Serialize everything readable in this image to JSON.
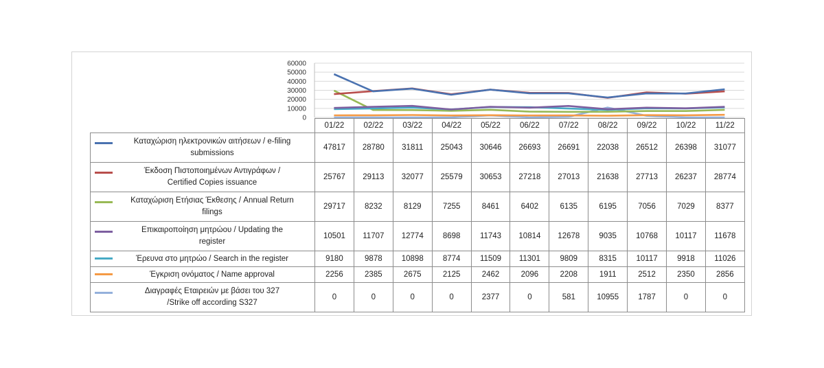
{
  "chart_data": {
    "type": "line",
    "title": "",
    "xlabel": "",
    "ylabel": "",
    "categories": [
      "01/22",
      "02/22",
      "03/22",
      "04/22",
      "05/22",
      "06/22",
      "07/22",
      "08/22",
      "09/22",
      "10/22",
      "11/22"
    ],
    "ylim": [
      0,
      60000
    ],
    "yticks": [
      "0",
      "10000",
      "20000",
      "30000",
      "40000",
      "50000",
      "60000"
    ],
    "grid": true,
    "legend": "data-table",
    "series": [
      {
        "name": "Καταχώριση ηλεκτρονικών αιτήσεων / e-filing submissions",
        "color": "#4a72b0",
        "values": [
          47817,
          28780,
          31811,
          25043,
          30646,
          26693,
          26691,
          22038,
          26512,
          26398,
          31077
        ]
      },
      {
        "name": "Έκδοση Πιστοποιημένων Αντιγράφων / Certified Copies issuance",
        "color": "#b84e4c",
        "values": [
          25767,
          29113,
          32077,
          25579,
          30653,
          27218,
          27013,
          21638,
          27713,
          26237,
          28774
        ]
      },
      {
        "name": "Καταχώριση Ετήσιας Έκθεσης / Annual Return filings",
        "color": "#98b955",
        "values": [
          29717,
          8232,
          8129,
          7255,
          8461,
          6402,
          6135,
          6195,
          7056,
          7029,
          8377
        ]
      },
      {
        "name": "Επικαιροποίηση μητρώου / Updating the register",
        "color": "#7d5fa0",
        "values": [
          10501,
          11707,
          12774,
          8698,
          11743,
          10814,
          12678,
          9035,
          10768,
          10117,
          11678
        ]
      },
      {
        "name": "Έρευνα στο μητρώο / Search in the register",
        "color": "#46aac5",
        "values": [
          9180,
          9878,
          10898,
          8774,
          11509,
          11301,
          9809,
          8315,
          10117,
          9918,
          11026
        ]
      },
      {
        "name": "Έγκριση ονόματος / Name approval",
        "color": "#f59a45",
        "values": [
          2256,
          2385,
          2675,
          2125,
          2462,
          2096,
          2208,
          1911,
          2512,
          2350,
          2856
        ]
      },
      {
        "name": "Διαγραφές Εταιρειών με βάσει του 327 /Strike off according S327",
        "color": "#94b0db",
        "values": [
          0,
          0,
          0,
          0,
          2377,
          0,
          581,
          10955,
          1787,
          0,
          0
        ]
      }
    ]
  },
  "labels": [
    [
      "Καταχώριση ηλεκτρονικών αιτήσεων / e-filing",
      "submissions"
    ],
    [
      "Έκδοση Πιστοποιημένων Αντιγράφων /",
      "Certified Copies issuance"
    ],
    [
      "Καταχώριση Ετήσιας Έκθεσης / Annual Return",
      "filings"
    ],
    [
      "Επικαιροποίηση μητρώου / Updating the",
      "register"
    ],
    [
      "Έρευνα στο μητρώο / Search in the register"
    ],
    [
      "Έγκριση ονόματος / Name approval"
    ],
    [
      "Διαγραφές Εταιρειών  με  βάσει του 327",
      "/Strike off according S327"
    ]
  ]
}
